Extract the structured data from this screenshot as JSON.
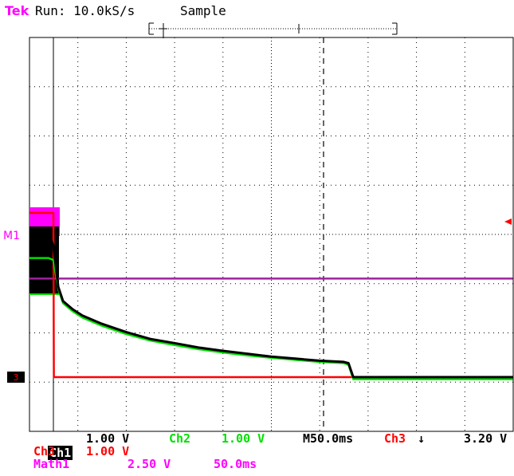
{
  "header": {
    "brand": "Tek",
    "status": "Run: 10.0kS/s",
    "acq_mode": "Sample"
  },
  "markers": {
    "m1": "M1",
    "ref_left": "3",
    "ref_right": "←"
  },
  "readouts": {
    "ch1": {
      "name": "Ch1",
      "scale": "1.00 V"
    },
    "ch2": {
      "name": "Ch2",
      "scale": "1.00 V"
    },
    "ch3": {
      "name": "Ch3",
      "scale": "1.00 V"
    },
    "math1": {
      "name": "Math1",
      "scale": "2.50 V",
      "time": "50.0ms"
    },
    "timebase": "M50.0ms",
    "trigger": {
      "source": "Ch3",
      "slope": "↓",
      "level": "3.20 V"
    }
  },
  "colors": {
    "magenta": "#ff00ff",
    "red": "#ff0000",
    "green": "#00e000",
    "black": "#000000",
    "purple": "#a020a0"
  },
  "chart_data": {
    "type": "line",
    "x_unit": "ms",
    "x_per_div": 50.0,
    "x_divisions": 10,
    "y_divisions": 8,
    "series": [
      {
        "name": "Ch1",
        "color": "#000000",
        "x": [
          -25,
          -12,
          -5,
          0,
          5,
          10,
          20,
          30,
          50,
          75,
          100,
          125,
          150,
          175,
          200,
          225,
          250,
          275,
          300,
          305,
          310,
          400,
          475
        ],
        "y": [
          3.6,
          3.6,
          3.5,
          3.2,
          2.2,
          1.85,
          1.65,
          1.5,
          1.3,
          1.1,
          0.93,
          0.83,
          0.72,
          0.64,
          0.57,
          0.5,
          0.45,
          0.4,
          0.37,
          0.34,
          0.0,
          0.0,
          0.0
        ]
      },
      {
        "name": "Ch2",
        "color": "#00e000",
        "x": [
          -25,
          -12,
          -5,
          0,
          5,
          10,
          20,
          30,
          50,
          75,
          100,
          125,
          150,
          175,
          200,
          225,
          250,
          275,
          300,
          305,
          310,
          400,
          475
        ],
        "y": [
          2.9,
          2.9,
          2.9,
          2.85,
          2.15,
          1.8,
          1.6,
          1.45,
          1.25,
          1.05,
          0.89,
          0.78,
          0.68,
          0.6,
          0.53,
          0.47,
          0.42,
          0.37,
          0.34,
          0.3,
          -0.05,
          -0.05,
          -0.05
        ]
      },
      {
        "name": "Ch3",
        "color": "#ff0000",
        "x": [
          -25,
          0,
          0.5,
          475
        ],
        "y": [
          4.0,
          4.0,
          0.0,
          0.0
        ]
      },
      {
        "name": "Math1",
        "color": "#a020a0",
        "x": [
          -25,
          475
        ],
        "y": [
          2.4,
          2.4
        ]
      }
    ]
  }
}
